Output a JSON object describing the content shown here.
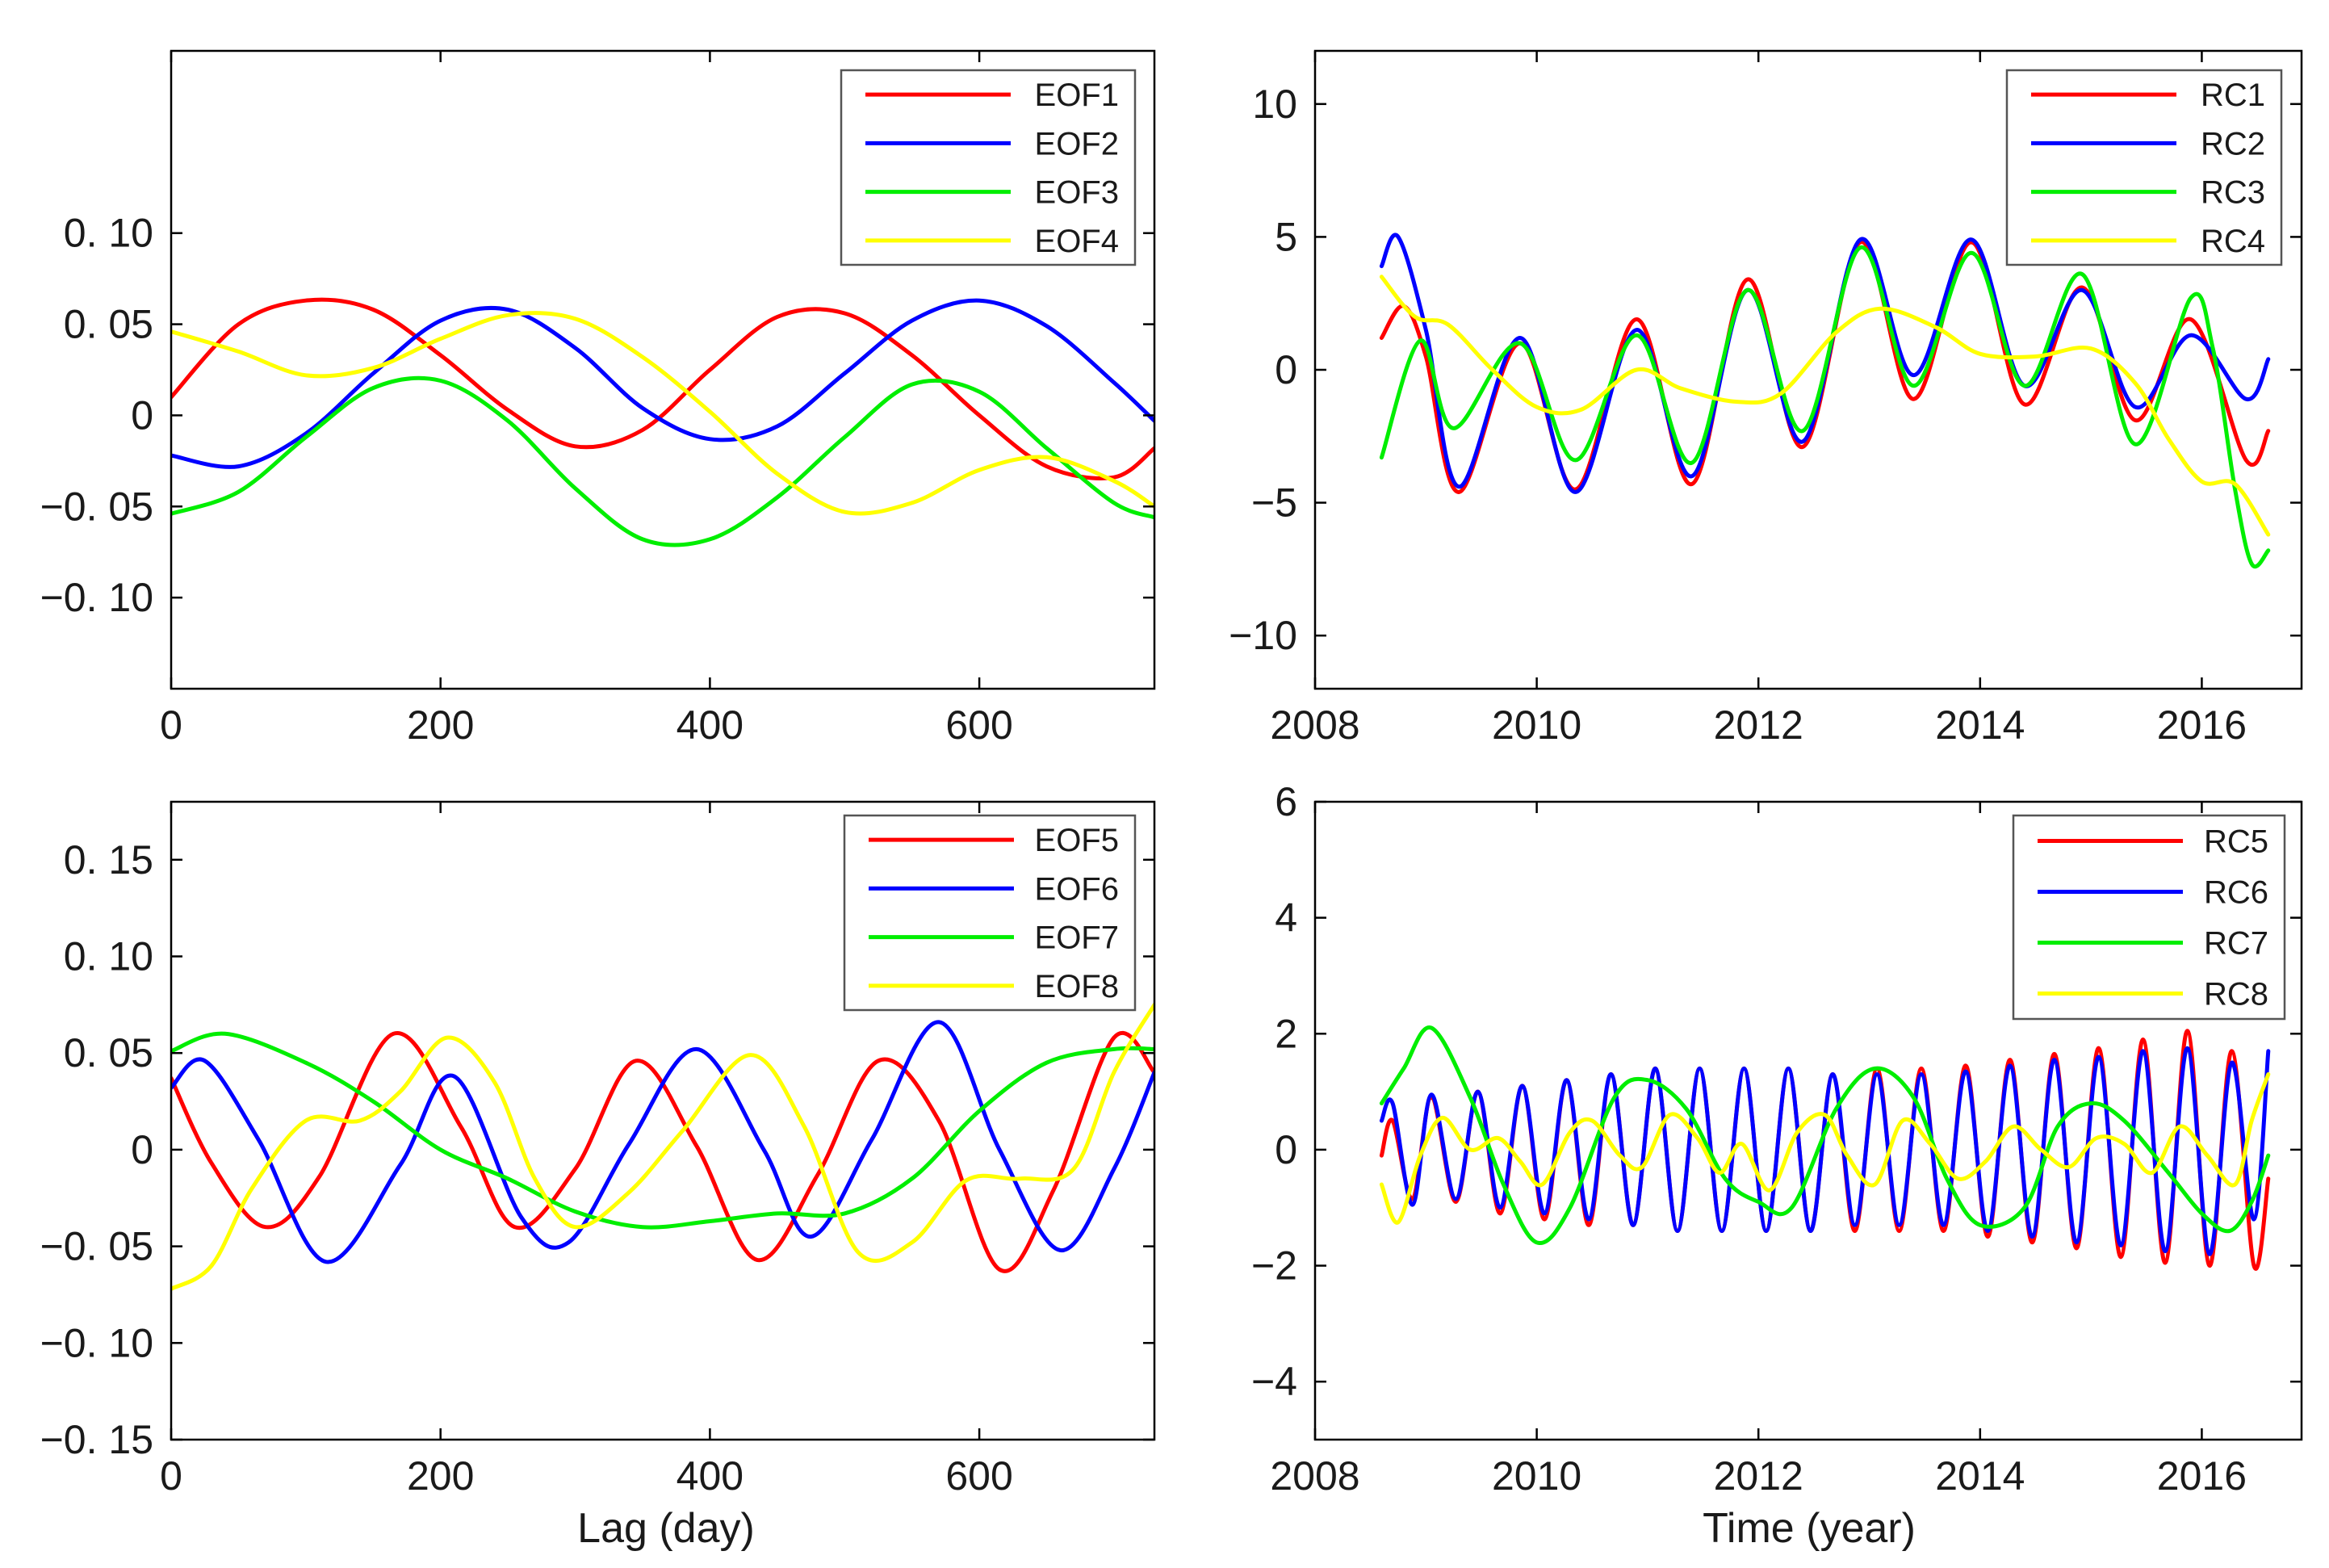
{
  "figure": {
    "bottom_xlabels": [
      "Lag (day)",
      "Time (year)"
    ]
  },
  "chart_data": [
    {
      "id": "eof-top",
      "type": "line",
      "title": "",
      "xlabel": "",
      "ylabel": "",
      "xlim": [
        0,
        730
      ],
      "ylim": [
        -0.15,
        0.2
      ],
      "xticks": [
        0,
        200,
        400,
        600
      ],
      "xtick_labels": [
        "0",
        "200",
        "400",
        "600"
      ],
      "yticks": [
        -0.1,
        -0.05,
        0,
        0.05,
        0.1
      ],
      "ytick_labels": [
        "−0. 10",
        "−0. 05",
        "0",
        "0. 05",
        "0. 10"
      ],
      "legend_position": "top-right",
      "series": [
        {
          "name": "EOF1",
          "color": "#ff0000",
          "x": [
            0,
            50,
            100,
            150,
            200,
            250,
            300,
            350,
            400,
            450,
            500,
            550,
            600,
            650,
            700,
            730
          ],
          "y": [
            0.01,
            0.05,
            0.063,
            0.058,
            0.033,
            0.003,
            -0.017,
            -0.008,
            0.025,
            0.054,
            0.056,
            0.033,
            0.0,
            -0.028,
            -0.034,
            -0.018
          ]
        },
        {
          "name": "EOF2",
          "color": "#0000ff",
          "x": [
            0,
            50,
            100,
            150,
            200,
            250,
            300,
            350,
            400,
            450,
            500,
            550,
            600,
            650,
            700,
            730
          ],
          "y": [
            -0.022,
            -0.028,
            -0.01,
            0.023,
            0.052,
            0.058,
            0.037,
            0.004,
            -0.013,
            -0.006,
            0.023,
            0.052,
            0.063,
            0.049,
            0.018,
            -0.003
          ]
        },
        {
          "name": "EOF3",
          "color": "#00ee00",
          "x": [
            0,
            50,
            100,
            150,
            200,
            250,
            300,
            350,
            400,
            450,
            500,
            550,
            600,
            650,
            700,
            730
          ],
          "y": [
            -0.054,
            -0.042,
            -0.012,
            0.015,
            0.019,
            -0.003,
            -0.04,
            -0.068,
            -0.068,
            -0.045,
            -0.012,
            0.017,
            0.013,
            -0.018,
            -0.048,
            -0.056
          ]
        },
        {
          "name": "EOF4",
          "color": "#ffff00",
          "x": [
            0,
            50,
            100,
            150,
            200,
            250,
            300,
            350,
            400,
            450,
            500,
            550,
            600,
            650,
            700,
            730
          ],
          "y": [
            0.046,
            0.035,
            0.022,
            0.026,
            0.042,
            0.055,
            0.053,
            0.032,
            0.002,
            -0.032,
            -0.053,
            -0.048,
            -0.03,
            -0.023,
            -0.036,
            -0.05
          ]
        }
      ]
    },
    {
      "id": "rc-top",
      "type": "line",
      "title": "",
      "xlabel": "",
      "ylabel": "",
      "xlim": [
        2008,
        2016.9
      ],
      "ylim": [
        -12,
        12
      ],
      "xticks": [
        2008,
        2010,
        2012,
        2014,
        2016
      ],
      "xtick_labels": [
        "2008",
        "2010",
        "2012",
        "2014",
        "2016"
      ],
      "yticks": [
        -10,
        -5,
        0,
        5,
        10
      ],
      "ytick_labels": [
        "−10",
        "−5",
        "0",
        "5",
        "10"
      ],
      "legend_position": "top-right",
      "series": [
        {
          "name": "RC1",
          "color": "#ff0000",
          "x": [
            2008.6,
            2008.8,
            2009.0,
            2009.3,
            2009.85,
            2010.35,
            2010.9,
            2011.4,
            2011.9,
            2012.4,
            2012.92,
            2013.4,
            2013.92,
            2014.4,
            2014.92,
            2015.4,
            2015.9,
            2016.4,
            2016.6
          ],
          "y": [
            1.2,
            2.4,
            0.5,
            -4.6,
            1.0,
            -4.5,
            1.9,
            -4.3,
            3.4,
            -2.9,
            4.8,
            -1.1,
            4.8,
            -1.3,
            3.1,
            -1.9,
            1.9,
            -3.4,
            -2.3
          ]
        },
        {
          "name": "RC2",
          "color": "#0000ff",
          "x": [
            2008.6,
            2008.75,
            2009.0,
            2009.3,
            2009.85,
            2010.35,
            2010.9,
            2011.4,
            2011.9,
            2012.4,
            2012.92,
            2013.4,
            2013.92,
            2014.4,
            2014.92,
            2015.4,
            2015.9,
            2016.4,
            2016.6
          ],
          "y": [
            3.9,
            5.0,
            1.5,
            -4.4,
            1.2,
            -4.6,
            1.5,
            -4.0,
            3.0,
            -2.7,
            4.9,
            -0.2,
            4.9,
            -0.6,
            3.0,
            -1.4,
            1.3,
            -1.1,
            0.4
          ]
        },
        {
          "name": "RC3",
          "color": "#00ee00",
          "x": [
            2008.6,
            2008.95,
            2009.25,
            2009.85,
            2010.35,
            2010.9,
            2011.4,
            2011.9,
            2012.4,
            2012.92,
            2013.4,
            2013.92,
            2014.4,
            2014.92,
            2015.4,
            2015.9,
            2016.1,
            2016.3,
            2016.45,
            2016.6
          ],
          "y": [
            -3.3,
            1.1,
            -2.2,
            1.0,
            -3.4,
            1.3,
            -3.5,
            3.0,
            -2.3,
            4.6,
            -0.6,
            4.4,
            -0.6,
            3.6,
            -2.8,
            2.7,
            0.8,
            -4.5,
            -7.3,
            -6.8
          ]
        },
        {
          "name": "RC4",
          "color": "#ffff00",
          "x": [
            2008.6,
            2008.9,
            2009.2,
            2009.6,
            2010.0,
            2010.4,
            2010.9,
            2011.3,
            2011.8,
            2012.2,
            2012.7,
            2013.1,
            2013.6,
            2014.0,
            2014.5,
            2015.0,
            2015.4,
            2015.7,
            2016.0,
            2016.3,
            2016.6
          ],
          "y": [
            3.5,
            2.0,
            1.7,
            0.0,
            -1.4,
            -1.5,
            0.0,
            -0.7,
            -1.2,
            -0.9,
            1.4,
            2.3,
            1.6,
            0.6,
            0.5,
            0.8,
            -0.5,
            -2.6,
            -4.2,
            -4.3,
            -6.2
          ]
        }
      ]
    },
    {
      "id": "eof-bottom",
      "type": "line",
      "title": "",
      "xlabel": "Lag (day)",
      "ylabel": "",
      "xlim": [
        0,
        730
      ],
      "ylim": [
        -0.15,
        0.18
      ],
      "xticks": [
        0,
        200,
        400,
        600
      ],
      "xtick_labels": [
        "0",
        "200",
        "400",
        "600"
      ],
      "yticks": [
        -0.15,
        -0.1,
        -0.05,
        0,
        0.05,
        0.1,
        0.15
      ],
      "ytick_labels": [
        "−0. 15",
        "−0. 10",
        "−0. 05",
        "0",
        "0. 05",
        "0. 10",
        "0. 15"
      ],
      "legend_position": "top-right",
      "series": [
        {
          "name": "EOF5",
          "color": "#ff0000",
          "x": [
            0,
            30,
            70,
            110,
            165,
            215,
            255,
            300,
            345,
            390,
            435,
            480,
            525,
            570,
            615,
            655,
            700,
            730
          ],
          "y": [
            0.037,
            -0.007,
            -0.04,
            -0.014,
            0.06,
            0.012,
            -0.04,
            -0.01,
            0.046,
            0.002,
            -0.057,
            -0.013,
            0.046,
            0.015,
            -0.062,
            -0.021,
            0.058,
            0.04
          ]
        },
        {
          "name": "EOF6",
          "color": "#0000ff",
          "x": [
            0,
            25,
            65,
            115,
            170,
            210,
            260,
            295,
            340,
            390,
            440,
            475,
            520,
            570,
            615,
            660,
            700,
            730
          ],
          "y": [
            0.032,
            0.046,
            0.005,
            -0.058,
            -0.008,
            0.038,
            -0.035,
            -0.048,
            0.003,
            0.052,
            0.0,
            -0.045,
            0.005,
            0.066,
            0.0,
            -0.052,
            -0.01,
            0.04
          ]
        },
        {
          "name": "EOF7",
          "color": "#00ee00",
          "x": [
            0,
            40,
            100,
            150,
            200,
            250,
            300,
            350,
            400,
            450,
            500,
            550,
            600,
            650,
            700,
            730
          ],
          "y": [
            0.051,
            0.06,
            0.045,
            0.025,
            0.0,
            -0.015,
            -0.032,
            -0.04,
            -0.037,
            -0.033,
            -0.033,
            -0.015,
            0.02,
            0.045,
            0.052,
            0.052
          ]
        },
        {
          "name": "EOF8",
          "color": "#ffff00",
          "x": [
            0,
            30,
            60,
            100,
            140,
            170,
            205,
            240,
            270,
            300,
            340,
            380,
            430,
            470,
            510,
            550,
            590,
            630,
            670,
            700,
            730
          ],
          "y": [
            -0.072,
            -0.06,
            -0.02,
            0.015,
            0.015,
            0.03,
            0.058,
            0.035,
            -0.015,
            -0.04,
            -0.022,
            0.01,
            0.049,
            0.012,
            -0.053,
            -0.048,
            -0.016,
            -0.015,
            -0.01,
            0.04,
            0.075
          ]
        }
      ]
    },
    {
      "id": "rc-bottom",
      "type": "line",
      "title": "",
      "xlabel": "Time (year)",
      "ylabel": "",
      "xlim": [
        2008,
        2016.9
      ],
      "ylim": [
        -5,
        6
      ],
      "xticks": [
        2008,
        2010,
        2012,
        2014,
        2016
      ],
      "xtick_labels": [
        "2008",
        "2010",
        "2012",
        "2014",
        "2016"
      ],
      "yticks": [
        -4,
        -2,
        0,
        2,
        4,
        6
      ],
      "ytick_labels": [
        "−4",
        "−2",
        "0",
        "2",
        "4",
        "6"
      ],
      "legend_position": "top-right",
      "series": [
        {
          "name": "RC5",
          "color": "#ff0000",
          "x": [
            2008.6,
            2008.7,
            2008.88,
            2009.05,
            2009.27,
            2009.47,
            2009.67,
            2009.87,
            2010.07,
            2010.27,
            2010.47,
            2010.67,
            2010.87,
            2011.07,
            2011.27,
            2011.47,
            2011.67,
            2011.87,
            2012.07,
            2012.27,
            2012.47,
            2012.67,
            2012.87,
            2013.07,
            2013.27,
            2013.47,
            2013.67,
            2013.87,
            2014.07,
            2014.27,
            2014.47,
            2014.67,
            2014.87,
            2015.07,
            2015.27,
            2015.47,
            2015.67,
            2015.87,
            2016.07,
            2016.27,
            2016.47,
            2016.6
          ],
          "y": [
            -0.1,
            0.5,
            -0.85,
            0.9,
            -0.9,
            1.0,
            -1.1,
            1.1,
            -1.2,
            1.2,
            -1.3,
            1.3,
            -1.3,
            1.4,
            -1.4,
            1.4,
            -1.4,
            1.4,
            -1.4,
            1.4,
            -1.4,
            1.3,
            -1.4,
            1.4,
            -1.4,
            1.4,
            -1.4,
            1.45,
            -1.5,
            1.55,
            -1.6,
            1.65,
            -1.7,
            1.75,
            -1.85,
            1.9,
            -1.95,
            2.05,
            -2.0,
            1.7,
            -2.0,
            -0.5
          ]
        },
        {
          "name": "RC6",
          "color": "#0000ff",
          "x": [
            2008.6,
            2008.7,
            2008.88,
            2009.05,
            2009.27,
            2009.47,
            2009.67,
            2009.87,
            2010.07,
            2010.27,
            2010.47,
            2010.67,
            2010.87,
            2011.07,
            2011.27,
            2011.47,
            2011.67,
            2011.87,
            2012.07,
            2012.27,
            2012.47,
            2012.67,
            2012.87,
            2013.07,
            2013.27,
            2013.47,
            2013.67,
            2013.87,
            2014.07,
            2014.27,
            2014.47,
            2014.67,
            2014.87,
            2015.07,
            2015.27,
            2015.47,
            2015.67,
            2015.87,
            2016.07,
            2016.27,
            2016.47,
            2016.6
          ],
          "y": [
            0.5,
            0.8,
            -0.95,
            0.95,
            -0.85,
            1.0,
            -1.0,
            1.1,
            -1.1,
            1.2,
            -1.2,
            1.3,
            -1.3,
            1.4,
            -1.4,
            1.4,
            -1.4,
            1.4,
            -1.4,
            1.4,
            -1.4,
            1.3,
            -1.3,
            1.3,
            -1.3,
            1.3,
            -1.3,
            1.35,
            -1.4,
            1.45,
            -1.5,
            1.55,
            -1.6,
            1.6,
            -1.65,
            1.7,
            -1.75,
            1.75,
            -1.8,
            1.5,
            -1.2,
            1.7
          ]
        },
        {
          "name": "RC7",
          "color": "#00ee00",
          "x": [
            2008.6,
            2008.8,
            2009.05,
            2009.4,
            2009.7,
            2010.0,
            2010.3,
            2010.7,
            2011.0,
            2011.35,
            2011.7,
            2012.0,
            2012.3,
            2012.7,
            2013.05,
            2013.4,
            2013.7,
            2014.0,
            2014.4,
            2014.7,
            2015.0,
            2015.3,
            2015.7,
            2016.0,
            2016.25,
            2016.45,
            2016.6
          ],
          "y": [
            0.8,
            1.4,
            2.1,
            0.9,
            -0.6,
            -1.6,
            -1.0,
            0.9,
            1.2,
            0.7,
            -0.5,
            -0.9,
            -1.0,
            0.7,
            1.4,
            0.9,
            -0.5,
            -1.3,
            -1.0,
            0.4,
            0.8,
            0.5,
            -0.4,
            -1.1,
            -1.4,
            -0.9,
            -0.1
          ]
        },
        {
          "name": "RC8",
          "color": "#ffff00",
          "x": [
            2008.6,
            2008.75,
            2008.95,
            2009.15,
            2009.4,
            2009.65,
            2009.85,
            2010.05,
            2010.3,
            2010.5,
            2010.75,
            2010.95,
            2011.2,
            2011.45,
            2011.65,
            2011.85,
            2012.1,
            2012.35,
            2012.6,
            2012.8,
            2013.05,
            2013.3,
            2013.55,
            2013.8,
            2014.05,
            2014.3,
            2014.55,
            2014.8,
            2015.05,
            2015.3,
            2015.55,
            2015.8,
            2016.05,
            2016.3,
            2016.45,
            2016.6
          ],
          "y": [
            -0.6,
            -1.25,
            -0.1,
            0.55,
            0.0,
            0.2,
            -0.2,
            -0.6,
            0.3,
            0.5,
            -0.1,
            -0.3,
            0.6,
            0.2,
            -0.4,
            0.1,
            -0.7,
            0.3,
            0.6,
            -0.1,
            -0.6,
            0.5,
            0.1,
            -0.5,
            -0.2,
            0.4,
            0.0,
            -0.3,
            0.2,
            0.1,
            -0.4,
            0.4,
            -0.1,
            -0.6,
            0.5,
            1.3
          ]
        }
      ]
    }
  ]
}
